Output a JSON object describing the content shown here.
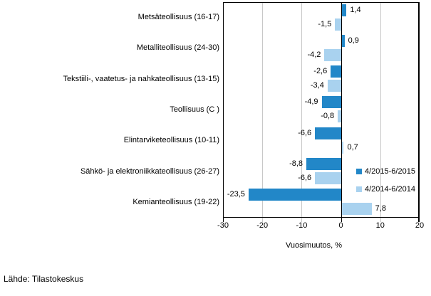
{
  "chart_data": {
    "type": "bar",
    "orientation": "horizontal",
    "categories": [
      "Metsäteollisuus (16-17)",
      "Metalliteollisuus (24-30)",
      "Tekstiili-, vaatetus- ja nahkateollisuus (13-15)",
      "Teollisuus (C )",
      "Elintarviketeollisuus (10-11)",
      "Sähkö- ja elektroniikkateollisuus (26-27)",
      "Kemianteollisuus (19-22)"
    ],
    "series": [
      {
        "name": "4/2015-6/2015",
        "color": "#2287c8",
        "values": [
          1.4,
          0.9,
          -2.6,
          -4.9,
          -6.6,
          -8.8,
          -23.5
        ]
      },
      {
        "name": "4/2014-6/2014",
        "color": "#a9d2ef",
        "values": [
          -1.5,
          -4.2,
          -3.4,
          -0.8,
          0.7,
          -6.6,
          7.8
        ]
      }
    ],
    "value_labels": [
      [
        "1,4",
        "0,9",
        "-2,6",
        "-4,9",
        "-6,6",
        "-8,8",
        "-23,5"
      ],
      [
        "-1,5",
        "-4,2",
        "-3,4",
        "-0,8",
        "0,7",
        "-6,6",
        "7,8"
      ]
    ],
    "xlabel": "Vuosimuutos, %",
    "xlim": [
      -30,
      20
    ],
    "xticks": [
      -30,
      -20,
      -10,
      0,
      10,
      20
    ],
    "xtick_labels": [
      "-30",
      "-20",
      "-10",
      "0",
      "10",
      "20"
    ],
    "grid": "vertical",
    "legend_position": "inside-right",
    "colors": {
      "axis": "#000000",
      "grid": "#c8c8c8",
      "text": "#000000"
    }
  },
  "footer": {
    "source": "Lähde: Tilastokeskus"
  }
}
